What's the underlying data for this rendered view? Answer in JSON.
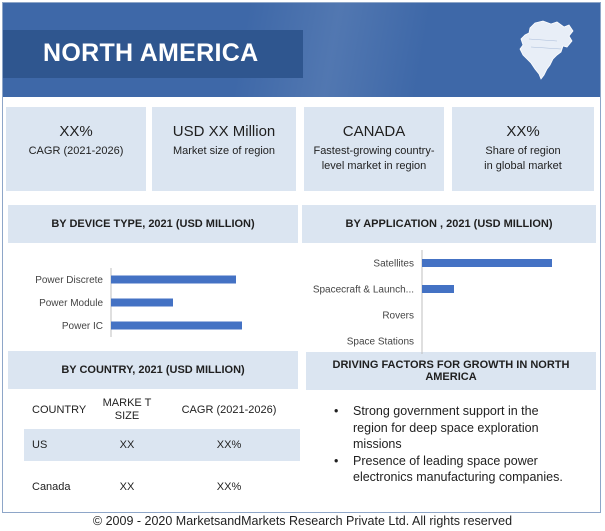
{
  "header": {
    "title": "NORTH AMERICA",
    "map_icon": "north-america-map-icon"
  },
  "stats": [
    {
      "value": "XX%",
      "label": "CAGR (2021-2026)"
    },
    {
      "value": "USD XX Million",
      "label": "Market size of region"
    },
    {
      "value": "CANADA",
      "label": "Fastest-growing country-level market in region"
    },
    {
      "value": "XX%",
      "label": "Share of region in global market"
    }
  ],
  "panels": {
    "device_type": "BY DEVICE TYPE, 2021 (USD MILLION)",
    "application": "BY APPLICATION , 2021 (USD MILLION)",
    "country": "BY COUNTRY, 2021 (USD MILLION)",
    "drivers": "DRIVING FACTORS FOR GROWTH IN NORTH AMERICA"
  },
  "chart_data": [
    {
      "type": "bar",
      "orientation": "horizontal",
      "title": "BY DEVICE TYPE, 2021 (USD MILLION)",
      "categories": [
        "Power Discrete",
        "Power Module",
        "Power IC"
      ],
      "values": [
        125,
        62,
        131
      ],
      "color": "#4472c4"
    },
    {
      "type": "bar",
      "orientation": "horizontal",
      "title": "BY APPLICATION , 2021 (USD MILLION)",
      "categories": [
        "Satellites",
        "Spacecraft & Launch...",
        "Rovers",
        "Space Stations"
      ],
      "values": [
        130,
        32,
        0,
        0
      ],
      "color": "#4472c4"
    }
  ],
  "table": {
    "headers": [
      "COUNTRY",
      "MARKE T SIZE",
      "CAGR (2021-2026)"
    ],
    "rows": [
      [
        "US",
        "XX",
        "XX%"
      ],
      [
        "Canada",
        "XX",
        "XX%"
      ]
    ]
  },
  "drivers": [
    "Strong government support in the region for deep space exploration missions",
    "Presence of leading space power electronics manufacturing companies."
  ],
  "bullet_char": "•",
  "footer": {
    "copyright": "© 2009 - 2020  MarketsandMarkets Research Private Ltd. All rights reserved"
  },
  "colors": {
    "header": "#3e68a8",
    "panel": "#dbe5f1",
    "bar": "#4472c4"
  }
}
